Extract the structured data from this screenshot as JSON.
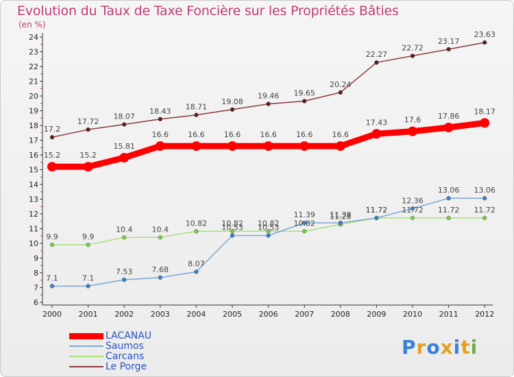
{
  "header": {
    "title": "Evolution du Taux de Taxe Foncière sur les Propriétés Bâties",
    "unit": "(en %)"
  },
  "logo": {
    "text": "Proxiti",
    "colors": [
      "#3b7fd6",
      "#e6a020",
      "#3b7fd6",
      "#e6a020",
      "#3b7fd6",
      "#e6a020",
      "#6ab04c"
    ]
  },
  "chart_data": {
    "type": "line",
    "title": "Evolution du Taux de Taxe Foncière sur les Propriétés Bâties",
    "ylabel": "(en %)",
    "xlabel": "",
    "x": [
      "2000",
      "2001",
      "2002",
      "2003",
      "2004",
      "2005",
      "2006",
      "2007",
      "2008",
      "2009",
      "2010",
      "2011",
      "2012"
    ],
    "ylim": [
      6,
      24
    ],
    "yticks": [
      6,
      7,
      8,
      9,
      10,
      11,
      12,
      13,
      14,
      15,
      16,
      17,
      18,
      19,
      20,
      21,
      22,
      23,
      24
    ],
    "grid": false,
    "legend_position": "bottom-left",
    "series": [
      {
        "name": "LACANAU",
        "color": "#ff0000",
        "point_color": "#ff0000",
        "width": 9,
        "dot": 7,
        "values": [
          15.2,
          15.2,
          15.81,
          16.6,
          16.6,
          16.6,
          16.6,
          16.6,
          16.6,
          17.43,
          17.6,
          17.86,
          18.17
        ],
        "labels": [
          "15.2",
          "15.2",
          "15.81",
          "16.6",
          "16.6",
          "16.6",
          "16.6",
          "16.6",
          "16.6",
          "17.43",
          "17.6",
          "17.86",
          "18.17"
        ]
      },
      {
        "name": "Saumos",
        "color": "#7aa6d6",
        "point_color": "#3d7fc4",
        "width": 1.5,
        "dot": 3,
        "values": [
          7.1,
          7.1,
          7.53,
          7.68,
          8.07,
          10.53,
          10.53,
          11.39,
          11.39,
          11.72,
          12.36,
          13.06,
          13.06
        ],
        "labels": [
          "7.1",
          "7.1",
          "7.53",
          "7.68",
          "8.07",
          "10.53",
          "10.53",
          "11.39",
          "11.39",
          "11.72",
          "12.36",
          "13.06",
          "13.06"
        ]
      },
      {
        "name": "Carcans",
        "color": "#a8e07a",
        "point_color": "#7cc84a",
        "width": 1.5,
        "dot": 3,
        "values": [
          9.9,
          9.9,
          10.4,
          10.4,
          10.82,
          10.82,
          10.82,
          10.82,
          11.28,
          11.72,
          11.72,
          11.72,
          11.72
        ],
        "labels": [
          "9.9",
          "9.9",
          "10.4",
          "10.4",
          "10.82",
          "10.82",
          "10.82",
          "10.82",
          "11.28",
          "11.72",
          "11.72",
          "11.72",
          "11.72"
        ]
      },
      {
        "name": "Le Porge",
        "color": "#8b3a3a",
        "point_color": "#5e1f1f",
        "width": 1.5,
        "dot": 3,
        "values": [
          17.2,
          17.72,
          18.07,
          18.43,
          18.71,
          19.08,
          19.46,
          19.65,
          20.24,
          22.27,
          22.72,
          23.17,
          23.63
        ],
        "labels": [
          "17.2",
          "17.72",
          "18.07",
          "18.43",
          "18.71",
          "19.08",
          "19.46",
          "19.65",
          "20.24",
          "22.27",
          "22.72",
          "23.17",
          "23.63"
        ]
      }
    ]
  }
}
